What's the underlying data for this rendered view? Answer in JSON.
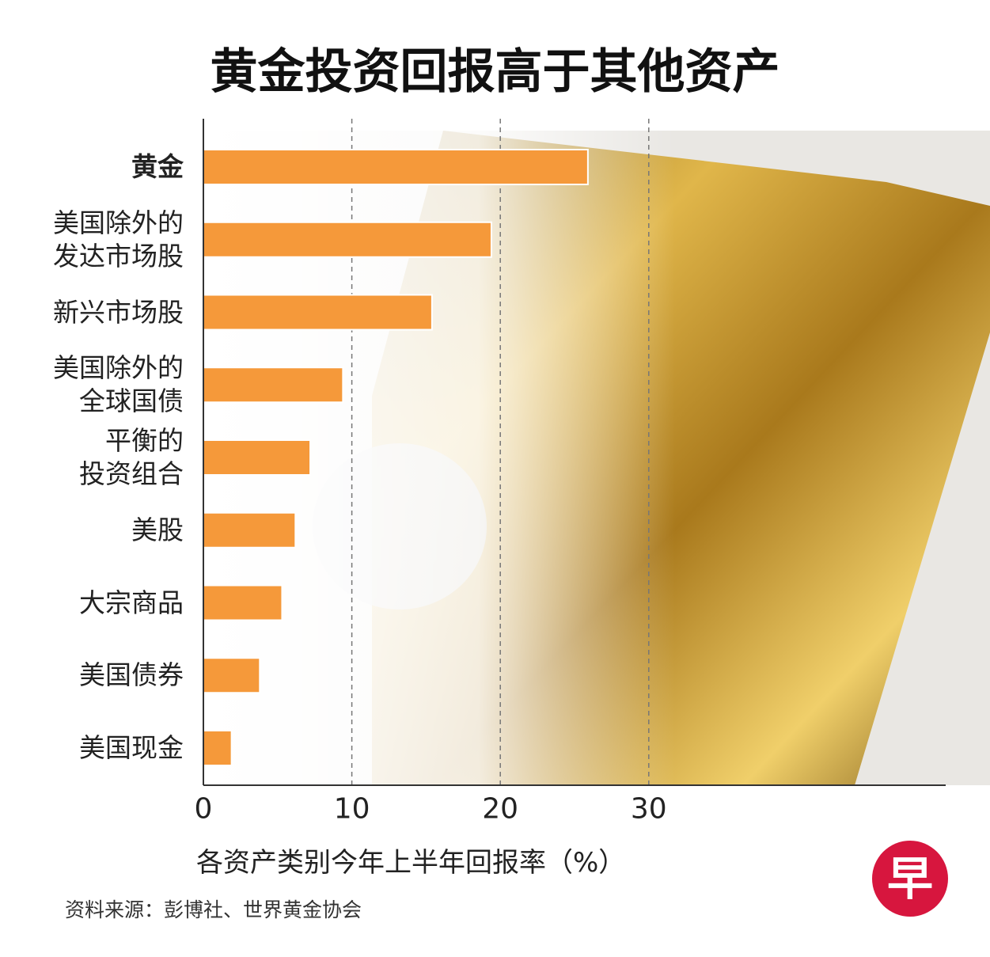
{
  "chart_data": {
    "type": "bar",
    "orientation": "horizontal",
    "title": "黄金投资回报高于其他资产",
    "categories": [
      "黄金",
      "美国除外的\n发达市场股",
      "新兴市场股",
      "美国除外的\n全球国债",
      "平衡的\n投资组合",
      "美股",
      "大宗商品",
      "美国债券",
      "美国现金"
    ],
    "values": [
      25.9,
      19.4,
      15.4,
      9.4,
      7.2,
      6.2,
      5.3,
      3.8,
      1.9
    ],
    "color": "#f5993a",
    "xlim": [
      0,
      50
    ],
    "xticks": [
      0,
      10,
      20,
      30
    ],
    "grid": true,
    "x_label": "各资产类别今年上半年回报率（%）",
    "source": "资料来源：彭博社、世界黄金协会",
    "logo": "早"
  }
}
